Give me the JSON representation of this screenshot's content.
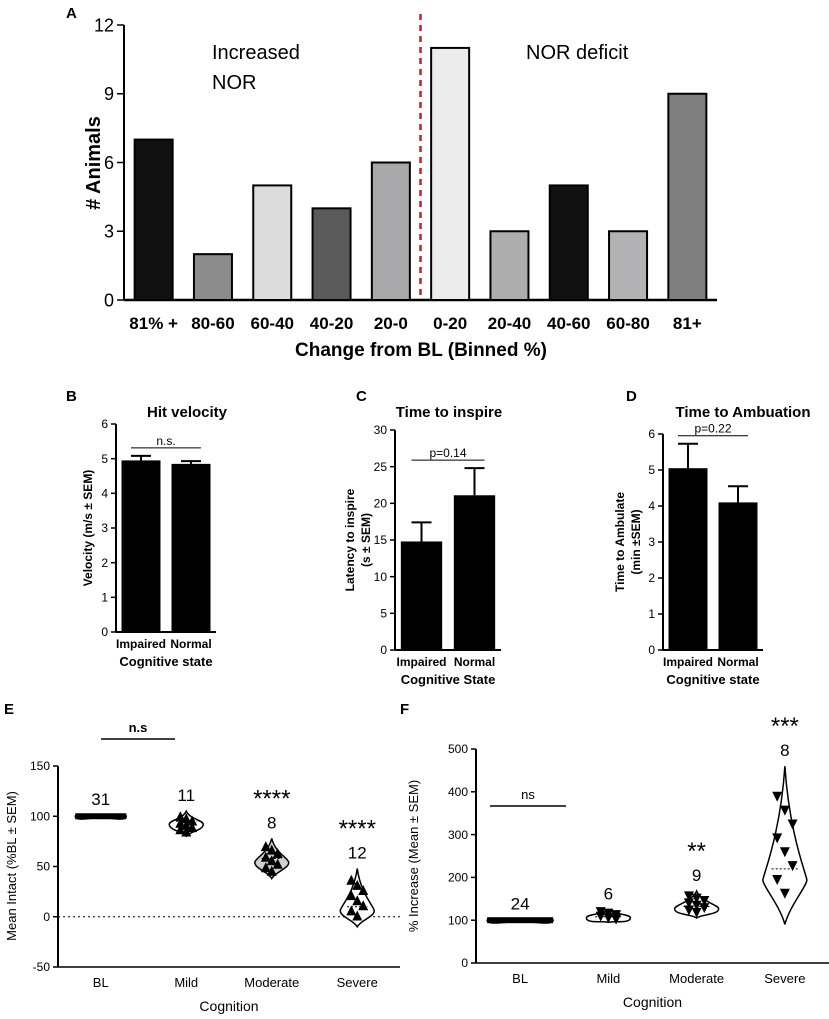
{
  "panels": [
    {
      "letter": "A",
      "type": "bar",
      "categories": [
        "81% +",
        "80-60",
        "60-40",
        "40-20",
        "20-0",
        "0-20",
        "20-40",
        "40-60",
        "60-80",
        "81+"
      ],
      "values": [
        7,
        2,
        5,
        4,
        6,
        11,
        3,
        5,
        3,
        9
      ],
      "colors": [
        "#111111",
        "#8c8c8c",
        "#dcdcdc",
        "#5a5a5a",
        "#a8a8aa",
        "#ececec",
        "#adadad",
        "#111111",
        "#b2b2b4",
        "#7f7f7f"
      ],
      "ylim": [
        0,
        12
      ],
      "yticks": [
        "0",
        "3",
        "6",
        "9",
        "12"
      ],
      "ylabel": "# Animals",
      "xlabel": "Change from BL  (Binned %)",
      "annotation_left_line1": "Increased",
      "annotation_left_line2": "NOR",
      "annotation_right": "NOR deficit",
      "divider_after_index": 4
    },
    {
      "letter": "B",
      "type": "bar",
      "title": "Hit velocity",
      "categories": [
        "Impaired",
        "Normal"
      ],
      "values": [
        4.95,
        4.85
      ],
      "errors": [
        0.13,
        0.08
      ],
      "ylim": [
        0,
        6
      ],
      "yticks": [
        "0",
        "1",
        "2",
        "3",
        "4",
        "5",
        "6"
      ],
      "ylabel": "Velocity (m/s ± SEM)",
      "xlabel": "Cognitive state",
      "significance": "n.s."
    },
    {
      "letter": "C",
      "type": "bar",
      "title": "Time to inspire",
      "categories": [
        "Impaired",
        "Normal"
      ],
      "values": [
        14.8,
        21.1
      ],
      "errors": [
        2.6,
        3.7
      ],
      "ylim": [
        0,
        30
      ],
      "yticks": [
        "0",
        "5",
        "10",
        "15",
        "20",
        "25",
        "30"
      ],
      "ylabel_line1": "Latency to inspire",
      "ylabel_line2": "(s ± SEM)",
      "xlabel": "Cognitive State",
      "significance": "p=0.14"
    },
    {
      "letter": "D",
      "type": "bar",
      "title": "Time to Ambuation",
      "categories": [
        "Impaired",
        "Normal"
      ],
      "values": [
        5.05,
        4.1
      ],
      "errors": [
        0.68,
        0.45
      ],
      "ylim": [
        0,
        6
      ],
      "yticks": [
        "0",
        "1",
        "2",
        "3",
        "4",
        "5",
        "6"
      ],
      "ylabel_line1": "Time to Ambulate",
      "ylabel_line2": "(min ±SEM)",
      "xlabel": "Cognitive state",
      "significance": "p=0.22"
    },
    {
      "letter": "E",
      "type": "violin",
      "categories": [
        "BL",
        "Mild",
        "Moderate",
        "Severe"
      ],
      "medians": [
        100,
        95,
        58,
        10
      ],
      "ranges": [
        [
          99,
          101
        ],
        [
          80,
          105
        ],
        [
          38,
          78
        ],
        [
          -10,
          48
        ]
      ],
      "n_labels": [
        "31",
        "11",
        "8",
        "12"
      ],
      "stars": [
        "",
        "",
        "****",
        "****"
      ],
      "ylim": [
        -50,
        150
      ],
      "yticks": [
        "-50",
        "0",
        "50",
        "100",
        "150"
      ],
      "ylabel": "Mean Intact (%BL ± SEM)",
      "xlabel": "Cognition",
      "significance": "n.s",
      "reference_line": 0
    },
    {
      "letter": "F",
      "type": "violin",
      "categories": [
        "BL",
        "Mild",
        "Moderate",
        "Severe"
      ],
      "medians": [
        100,
        108,
        132,
        220
      ],
      "ranges": [
        [
          98,
          102
        ],
        [
          95,
          125
        ],
        [
          105,
          168
        ],
        [
          90,
          460
        ]
      ],
      "n_labels": [
        "24",
        "6",
        "9",
        "8"
      ],
      "stars": [
        "",
        "",
        "**",
        "***"
      ],
      "ylim": [
        0,
        500
      ],
      "yticks": [
        "0",
        "100",
        "200",
        "300",
        "400",
        "500"
      ],
      "ylabel": "% Increase (Mean ± SEM)",
      "xlabel": "Cognition",
      "significance": "ns"
    }
  ]
}
